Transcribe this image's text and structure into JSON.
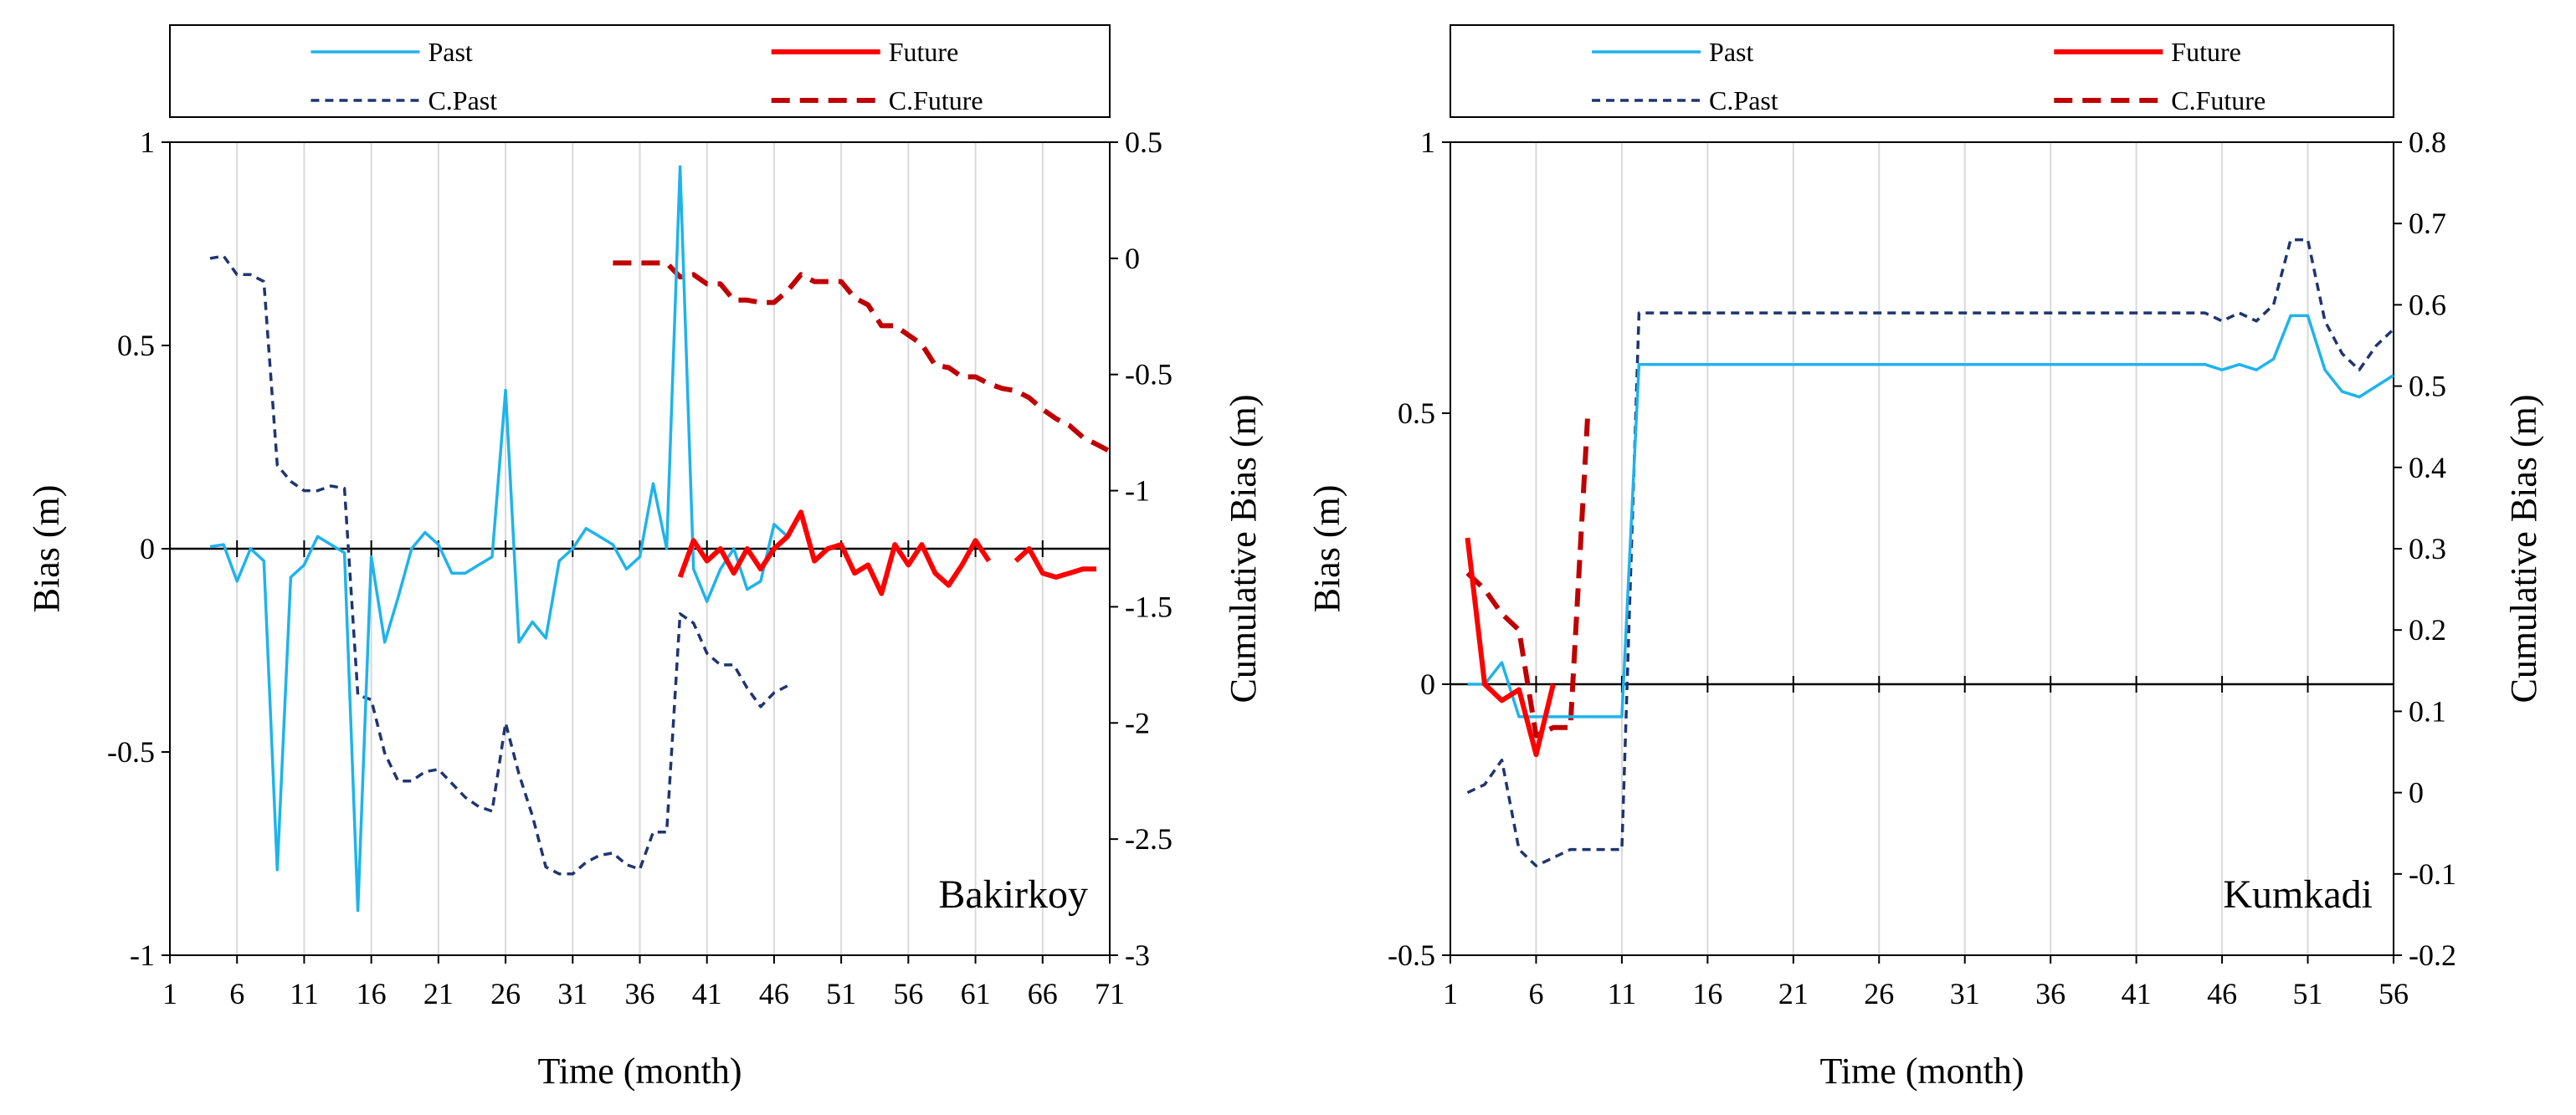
{
  "chart_data": [
    {
      "type": "line",
      "site_label": "Bakirkoy",
      "xlabel": "Time (month)",
      "ylabel": "Bias (m)",
      "y2label": "Cumulative Bias (m)",
      "xlim": [
        1,
        71
      ],
      "xticks": [
        1,
        6,
        11,
        16,
        21,
        26,
        31,
        36,
        41,
        46,
        51,
        56,
        61,
        66,
        71
      ],
      "ylim": [
        -1,
        1
      ],
      "yticks": [
        -1,
        -0.5,
        0,
        0.5,
        1
      ],
      "y2lim": [
        -3,
        0.5
      ],
      "y2ticks": [
        -3,
        -2.5,
        -2,
        -1.5,
        -1,
        -0.5,
        0,
        0.5
      ],
      "legend": [
        "Past",
        "Future",
        "C.Past",
        "C.Future"
      ],
      "legend_position": "top",
      "series": [
        {
          "name": "Past",
          "axis": "left",
          "style": "solid",
          "color": "#1fb3ec",
          "x": [
            4,
            5,
            6,
            7,
            8,
            9,
            10,
            11,
            12,
            13,
            14,
            15,
            16,
            17,
            18,
            19,
            20,
            21,
            22,
            23,
            24,
            25,
            26,
            27,
            28,
            29,
            30,
            31,
            32,
            33,
            34,
            35,
            36,
            37,
            38,
            39,
            40,
            41,
            42,
            43,
            44,
            45,
            46,
            47
          ],
          "y": [
            0.005,
            0.01,
            -0.08,
            0.0,
            -0.03,
            -0.79,
            -0.07,
            -0.04,
            0.03,
            0.01,
            -0.01,
            -0.89,
            -0.02,
            -0.23,
            -0.12,
            0.0,
            0.04,
            0.01,
            -0.06,
            -0.06,
            -0.04,
            -0.02,
            0.39,
            -0.23,
            -0.18,
            -0.22,
            -0.03,
            0.0,
            0.05,
            0.03,
            0.01,
            -0.05,
            -0.02,
            0.16,
            0.0,
            0.94,
            -0.05,
            -0.13,
            -0.05,
            0.0,
            -0.1,
            -0.08,
            0.06,
            0.03
          ]
        },
        {
          "name": "Future",
          "axis": "left",
          "style": "solid",
          "color": "#ff0000",
          "segments": [
            {
              "x": [
                39,
                40,
                41,
                42,
                43,
                44,
                45,
                46,
                47,
                48,
                49,
                50,
                51,
                52,
                53,
                54,
                55,
                56,
                57,
                58,
                59,
                60,
                61,
                62
              ],
              "y": [
                -0.07,
                0.02,
                -0.03,
                0.0,
                -0.06,
                0.0,
                -0.05,
                0.0,
                0.03,
                0.09,
                -0.03,
                0.0,
                0.01,
                -0.06,
                -0.04,
                -0.11,
                0.01,
                -0.04,
                0.01,
                -0.06,
                -0.09,
                -0.04,
                0.02,
                -0.03
              ]
            },
            {
              "x": [
                64,
                65,
                66,
                67,
                68,
                69,
                70
              ],
              "y": [
                -0.03,
                0.0,
                -0.06,
                -0.07,
                -0.06,
                -0.05,
                -0.05
              ]
            }
          ]
        },
        {
          "name": "C.Past",
          "axis": "right",
          "style": "dashed",
          "color": "#1f3570",
          "x": [
            4,
            5,
            6,
            7,
            8,
            9,
            10,
            11,
            12,
            13,
            14,
            15,
            16,
            17,
            18,
            19,
            20,
            21,
            22,
            23,
            24,
            25,
            26,
            27,
            28,
            29,
            30,
            31,
            32,
            33,
            34,
            35,
            36,
            37,
            38,
            39,
            40,
            41,
            42,
            43,
            44,
            45,
            46,
            47
          ],
          "y": [
            0.0,
            0.01,
            -0.07,
            -0.07,
            -0.1,
            -0.89,
            -0.96,
            -1.0,
            -1.0,
            -0.98,
            -0.99,
            -1.88,
            -1.9,
            -2.13,
            -2.25,
            -2.25,
            -2.21,
            -2.2,
            -2.26,
            -2.32,
            -2.36,
            -2.38,
            -2.0,
            -2.22,
            -2.4,
            -2.62,
            -2.65,
            -2.65,
            -2.6,
            -2.57,
            -2.56,
            -2.61,
            -2.63,
            -2.47,
            -2.47,
            -1.53,
            -1.57,
            -1.7,
            -1.75,
            -1.75,
            -1.85,
            -1.93,
            -1.87,
            -1.84
          ]
        },
        {
          "name": "C.Future",
          "axis": "right",
          "style": "dashed",
          "color": "#c00000",
          "x": [
            34,
            35,
            36,
            37,
            38,
            39,
            40,
            41,
            42,
            43,
            44,
            45,
            46,
            47,
            48,
            49,
            50,
            51,
            52,
            53,
            54,
            55,
            56,
            57,
            58,
            59,
            60,
            61,
            62,
            63,
            64,
            65,
            66,
            67,
            68,
            69,
            70,
            71
          ],
          "y": [
            -0.02,
            -0.02,
            -0.02,
            -0.02,
            -0.02,
            -0.08,
            -0.07,
            -0.11,
            -0.11,
            -0.18,
            -0.18,
            -0.19,
            -0.19,
            -0.14,
            -0.07,
            -0.1,
            -0.1,
            -0.1,
            -0.17,
            -0.2,
            -0.29,
            -0.29,
            -0.33,
            -0.37,
            -0.46,
            -0.47,
            -0.51,
            -0.51,
            -0.54,
            -0.56,
            -0.57,
            -0.6,
            -0.65,
            -0.69,
            -0.72,
            -0.77,
            -0.8,
            -0.83
          ]
        }
      ]
    },
    {
      "type": "line",
      "site_label": "Kumkadi",
      "xlabel": "Time (month)",
      "ylabel": "Bias (m)",
      "y2label": "Cumulative Bias (m)",
      "xlim": [
        1,
        56
      ],
      "xticks": [
        1,
        6,
        11,
        16,
        21,
        26,
        31,
        36,
        41,
        46,
        51,
        56
      ],
      "ylim": [
        -0.5,
        1
      ],
      "yticks": [
        -0.5,
        0,
        0.5,
        1
      ],
      "y2lim": [
        -0.2,
        0.8
      ],
      "y2ticks": [
        -0.2,
        -0.1,
        0,
        0.1,
        0.2,
        0.3,
        0.4,
        0.5,
        0.6,
        0.7,
        0.8
      ],
      "legend": [
        "Past",
        "Future",
        "C.Past",
        "C.Future"
      ],
      "legend_position": "top",
      "series": [
        {
          "name": "Past",
          "axis": "left",
          "style": "solid",
          "color": "#1fb3ec",
          "x": [
            2,
            3,
            4,
            5,
            6,
            7,
            8,
            9,
            10,
            11,
            12,
            13,
            20,
            30,
            40,
            45,
            46,
            47,
            48,
            49,
            50,
            51,
            52,
            53,
            54,
            55,
            56
          ],
          "y": [
            0.0,
            0.0,
            0.04,
            -0.06,
            -0.06,
            -0.06,
            -0.06,
            -0.06,
            -0.06,
            -0.06,
            0.59,
            0.59,
            0.59,
            0.59,
            0.59,
            0.59,
            0.58,
            0.59,
            0.58,
            0.6,
            0.68,
            0.68,
            0.58,
            0.54,
            0.53,
            0.55,
            0.57
          ]
        },
        {
          "name": "Future",
          "axis": "left",
          "style": "solid",
          "color": "#ff0000",
          "x": [
            2,
            3,
            4,
            5,
            6,
            7
          ],
          "y": [
            0.27,
            0.0,
            -0.03,
            -0.01,
            -0.13,
            0.0
          ]
        },
        {
          "name": "C.Past",
          "axis": "right",
          "style": "dashed",
          "color": "#1f3570",
          "x": [
            2,
            3,
            4,
            5,
            6,
            7,
            8,
            9,
            10,
            11,
            12,
            13,
            20,
            30,
            40,
            45,
            46,
            47,
            48,
            49,
            50,
            51,
            52,
            53,
            54,
            55,
            56
          ],
          "y": [
            0.0,
            0.01,
            0.04,
            -0.07,
            -0.09,
            -0.08,
            -0.07,
            -0.07,
            -0.07,
            -0.07,
            0.59,
            0.59,
            0.59,
            0.59,
            0.59,
            0.59,
            0.58,
            0.59,
            0.58,
            0.6,
            0.68,
            0.68,
            0.58,
            0.54,
            0.52,
            0.55,
            0.57
          ]
        },
        {
          "name": "C.Future",
          "axis": "right",
          "style": "dashed",
          "color": "#c00000",
          "x": [
            2,
            3,
            4,
            5,
            6,
            7,
            8,
            9
          ],
          "y": [
            0.27,
            0.25,
            0.22,
            0.2,
            0.07,
            0.08,
            0.08,
            0.46
          ]
        }
      ]
    }
  ]
}
